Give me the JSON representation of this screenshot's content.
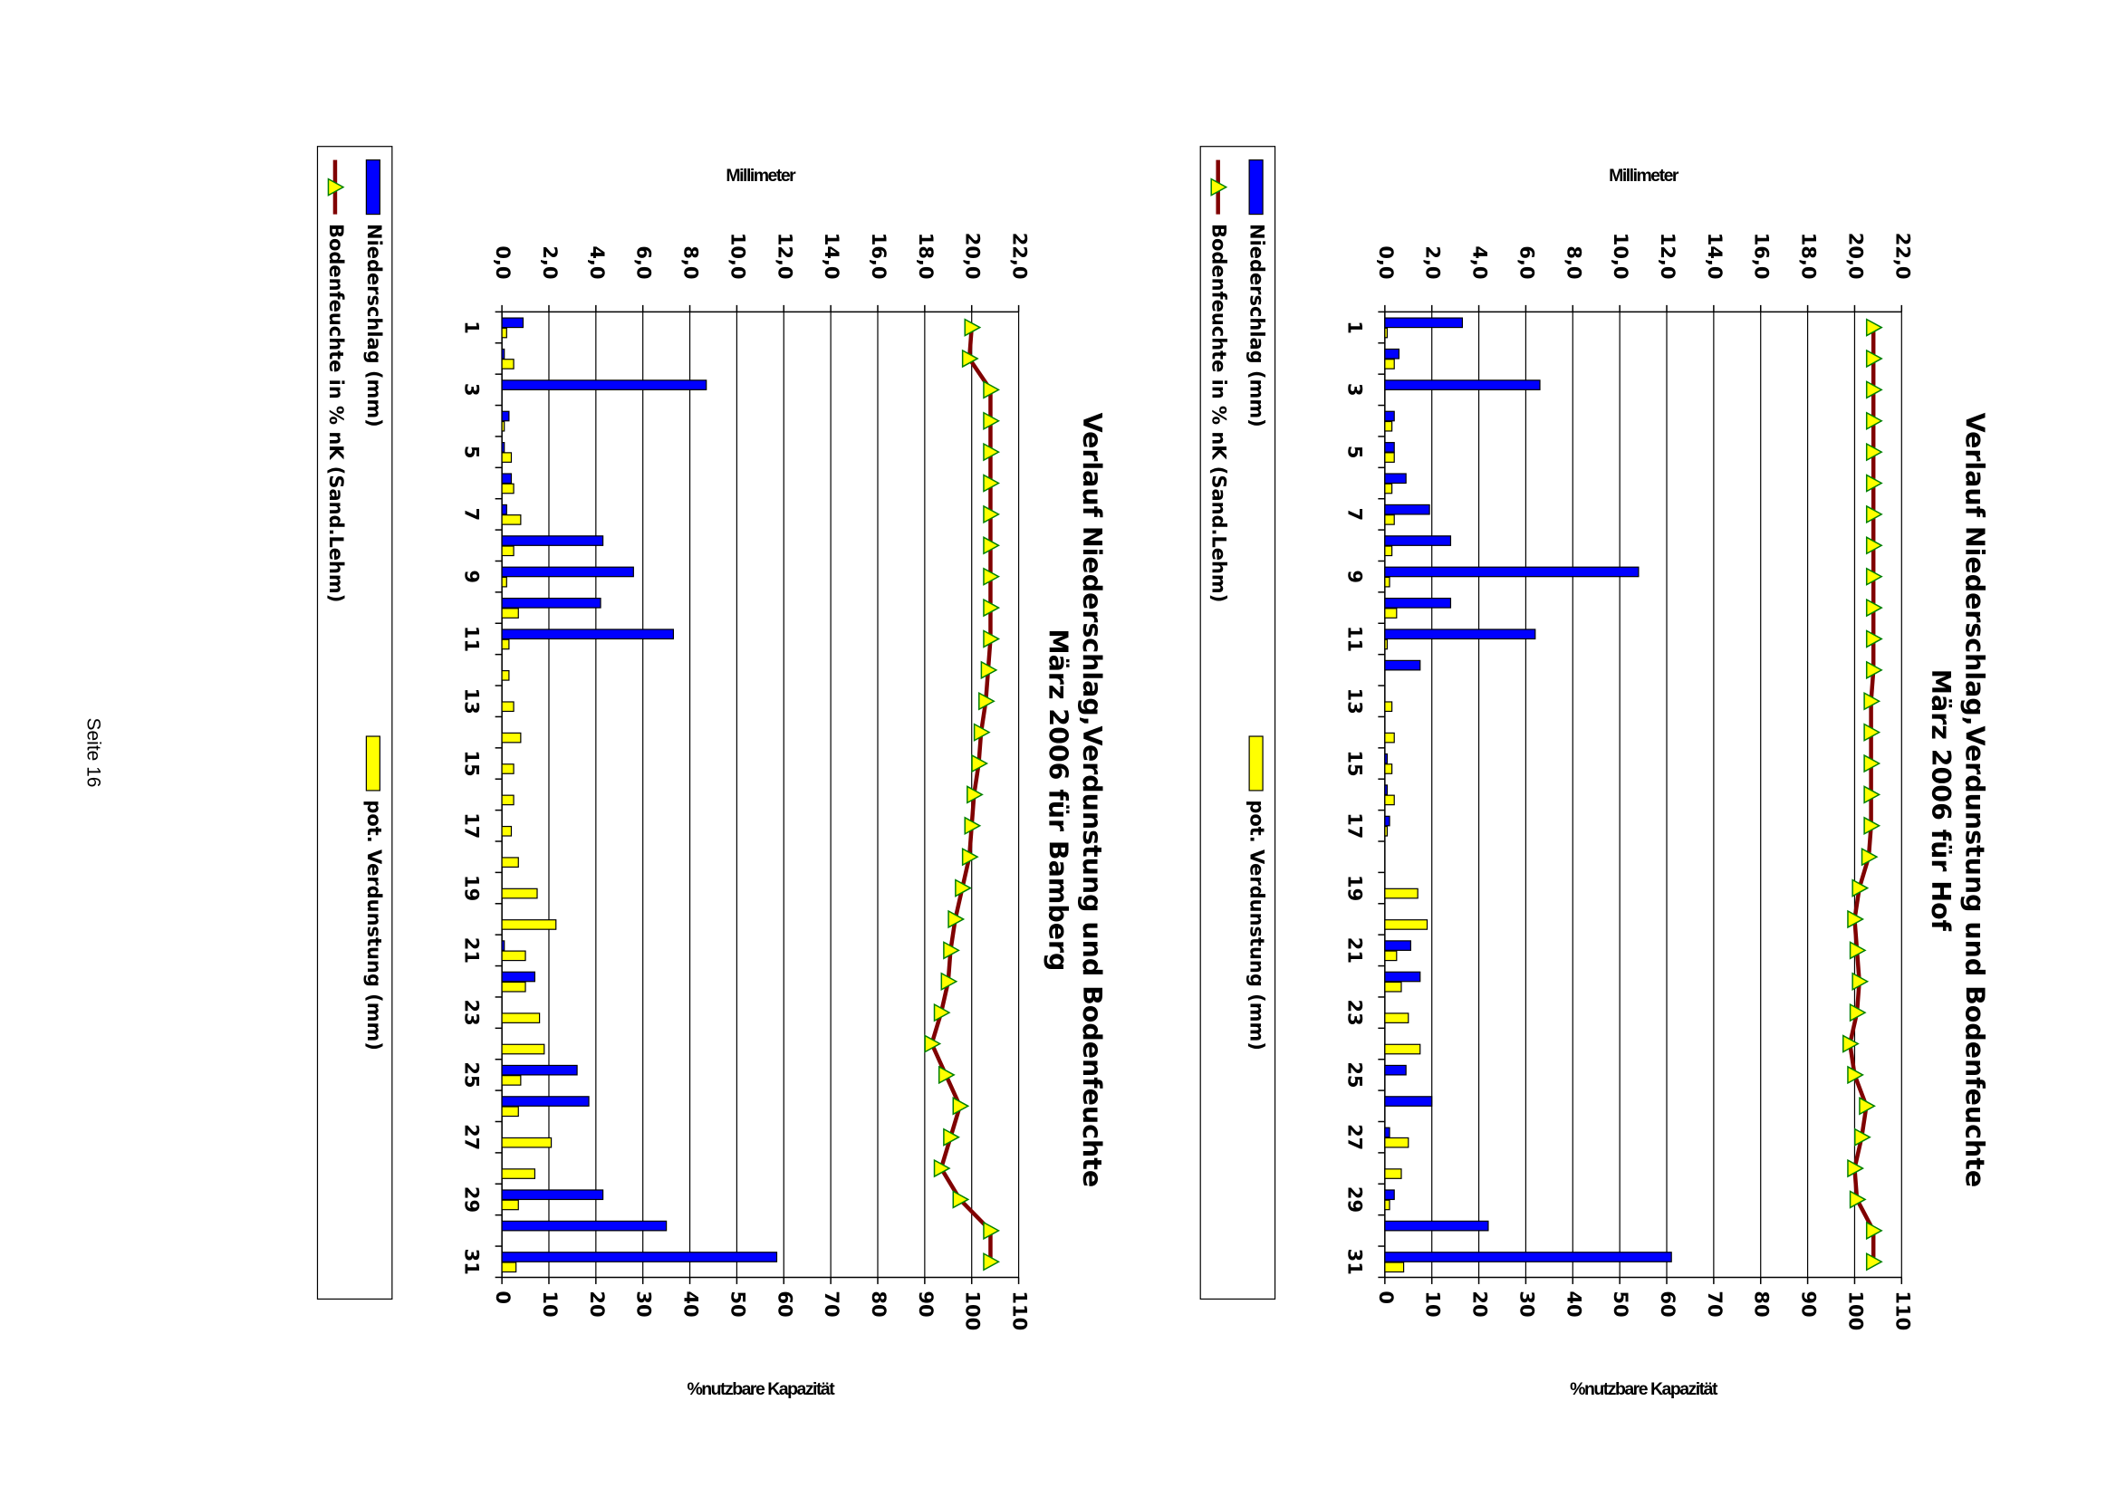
{
  "page": {
    "footer": "Seite 16"
  },
  "chart_data": [
    {
      "type": "bar",
      "title": "Verlauf Niederschlag,Verdunstung und Bodenfeuchte",
      "subtitle": "März 2006 für Hof",
      "y_label": "Millimeter",
      "y2_label": "%nutzbare Kapazität",
      "categories": [
        "1",
        null,
        "3",
        null,
        "5",
        null,
        "7",
        null,
        "9",
        null,
        "11",
        null,
        "13",
        null,
        "15",
        null,
        "17",
        null,
        "19",
        null,
        "21",
        null,
        "23",
        null,
        "25",
        null,
        "27",
        null,
        "29",
        null,
        "31"
      ],
      "ylim": [
        0,
        22
      ],
      "yticks": [
        {
          "value": 0,
          "label": "0,0"
        },
        {
          "value": 2,
          "label": "2,0"
        },
        {
          "value": 4,
          "label": "4,0"
        },
        {
          "value": 6,
          "label": "6,0"
        },
        {
          "value": 8,
          "label": "8,0"
        },
        {
          "value": 10,
          "label": "10,0"
        },
        {
          "value": 12,
          "label": "12,0"
        },
        {
          "value": 14,
          "label": "14,0"
        },
        {
          "value": 16,
          "label": "16,0"
        },
        {
          "value": 18,
          "label": "18,0"
        },
        {
          "value": 20,
          "label": "20,0"
        },
        {
          "value": 22,
          "label": "22,0"
        }
      ],
      "y2lim": [
        0,
        110
      ],
      "y2ticks": [
        0,
        10,
        20,
        30,
        40,
        50,
        60,
        70,
        80,
        90,
        100,
        110
      ],
      "grid": true,
      "series": [
        {
          "name": "Niederschlag (mm)",
          "type": "bar",
          "color": "#0000ff",
          "values": [
            3.3,
            0.6,
            6.6,
            0.4,
            0.4,
            0.9,
            1.9,
            2.8,
            10.8,
            2.8,
            6.4,
            1.5,
            0,
            0,
            0.1,
            0.1,
            0.2,
            0,
            0,
            0,
            1.1,
            1.5,
            0,
            0,
            0.9,
            2.0,
            0.2,
            0,
            0.4,
            4.4,
            12.2
          ]
        },
        {
          "name": "pot. Verdunstung (mm)",
          "type": "bar",
          "color": "#ffff00",
          "values": [
            0.1,
            0.4,
            0,
            0.3,
            0.4,
            0.3,
            0.4,
            0.3,
            0.2,
            0.5,
            0.1,
            0,
            0.3,
            0.4,
            0.3,
            0.4,
            0.1,
            0,
            1.4,
            1.8,
            0.5,
            0.7,
            1.0,
            1.5,
            0,
            0,
            1.0,
            0.7,
            0.2,
            0,
            0.8
          ]
        },
        {
          "name": "Bodenfeuchte in % nK (Sand.Lehm)",
          "type": "line",
          "axis": "y2",
          "color": "#800000",
          "marker_color": "#ffff00",
          "values": [
            104,
            104,
            104,
            104,
            104,
            104,
            104,
            104,
            104,
            104,
            104,
            104,
            103.5,
            103.5,
            103.5,
            103.5,
            103.5,
            103,
            101,
            100,
            100.5,
            101,
            100.5,
            99,
            100,
            102.5,
            101.5,
            100,
            100.5,
            104,
            104
          ]
        }
      ]
    },
    {
      "type": "bar",
      "title": "Verlauf Niederschlag,Verdunstung und Bodenfeuchte",
      "subtitle": "März 2006 für Bamberg",
      "y_label": "Millimeter",
      "y2_label": "%nutzbare Kapazität",
      "categories": [
        "1",
        null,
        "3",
        null,
        "5",
        null,
        "7",
        null,
        "9",
        null,
        "11",
        null,
        "13",
        null,
        "15",
        null,
        "17",
        null,
        "19",
        null,
        "21",
        null,
        "23",
        null,
        "25",
        null,
        "27",
        null,
        "29",
        null,
        "31"
      ],
      "ylim": [
        0,
        22
      ],
      "yticks": [
        {
          "value": 0,
          "label": "0,0"
        },
        {
          "value": 2,
          "label": "2,0"
        },
        {
          "value": 4,
          "label": "4,0"
        },
        {
          "value": 6,
          "label": "6,0"
        },
        {
          "value": 8,
          "label": "8,0"
        },
        {
          "value": 10,
          "label": "10,0"
        },
        {
          "value": 12,
          "label": "12,0"
        },
        {
          "value": 14,
          "label": "14,0"
        },
        {
          "value": 16,
          "label": "16,0"
        },
        {
          "value": 18,
          "label": "18,0"
        },
        {
          "value": 20,
          "label": "20,0"
        },
        {
          "value": 22,
          "label": "22,0"
        }
      ],
      "y2lim": [
        0,
        110
      ],
      "y2ticks": [
        0,
        10,
        20,
        30,
        40,
        50,
        60,
        70,
        80,
        90,
        100,
        110
      ],
      "grid": true,
      "series": [
        {
          "name": "Niederschlag (mm)",
          "type": "bar",
          "color": "#0000ff",
          "values": [
            0.9,
            0.1,
            8.7,
            0.3,
            0.1,
            0.4,
            0.2,
            4.3,
            5.6,
            4.2,
            7.3,
            0,
            0,
            0,
            0,
            0,
            0,
            0,
            0,
            0,
            0.1,
            1.4,
            0,
            0,
            3.2,
            3.7,
            0,
            0,
            4.3,
            7.0,
            11.7
          ]
        },
        {
          "name": "pot. Verdunstung (mm)",
          "type": "bar",
          "color": "#ffff00",
          "values": [
            0.2,
            0.5,
            0,
            0.1,
            0.4,
            0.5,
            0.8,
            0.5,
            0.2,
            0.7,
            0.3,
            0.3,
            0.5,
            0.8,
            0.5,
            0.5,
            0.4,
            0.7,
            1.5,
            2.3,
            1.0,
            1.0,
            1.6,
            1.8,
            0.8,
            0.7,
            2.1,
            1.4,
            0.7,
            0,
            0.6
          ]
        },
        {
          "name": "Bodenfeuchte in % nK (Sand.Lehm)",
          "type": "line",
          "axis": "y2",
          "color": "#800000",
          "marker_color": "#ffff00",
          "values": [
            100,
            99.5,
            104,
            104,
            104,
            104,
            104,
            104,
            104,
            104,
            104,
            103.5,
            103,
            102,
            101.5,
            100.5,
            100,
            99.5,
            98,
            96.5,
            95.5,
            95,
            93.5,
            91.5,
            94.5,
            97.5,
            95.5,
            93.5,
            97.5,
            104,
            104
          ]
        }
      ]
    }
  ]
}
